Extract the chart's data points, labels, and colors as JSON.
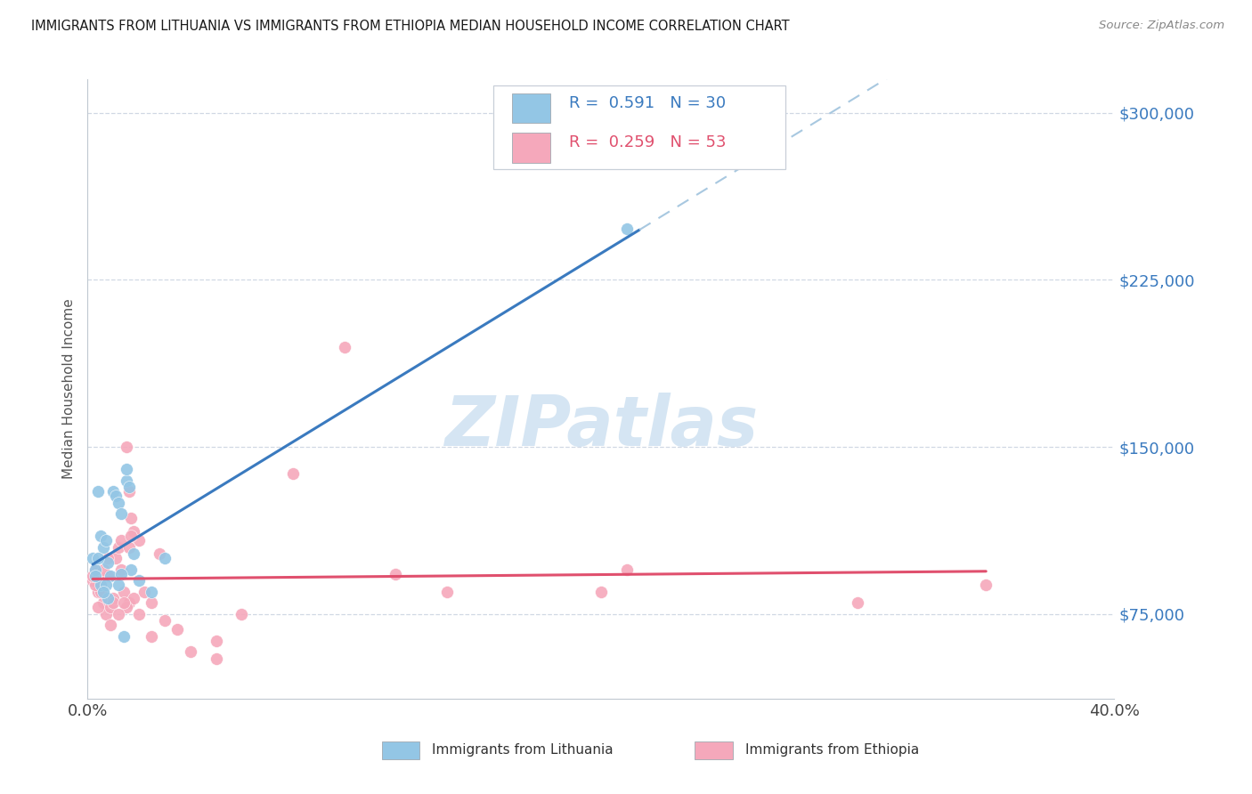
{
  "title": "IMMIGRANTS FROM LITHUANIA VS IMMIGRANTS FROM ETHIOPIA MEDIAN HOUSEHOLD INCOME CORRELATION CHART",
  "source": "Source: ZipAtlas.com",
  "ylabel": "Median Household Income",
  "xlim": [
    0.0,
    0.4
  ],
  "ylim": [
    37000,
    315000
  ],
  "yticks": [
    75000,
    150000,
    225000,
    300000
  ],
  "xticks": [
    0.0,
    0.05,
    0.1,
    0.15,
    0.2,
    0.25,
    0.3,
    0.35,
    0.4
  ],
  "label1": "Immigrants from Lithuania",
  "label2": "Immigrants from Ethiopia",
  "color1": "#93c6e5",
  "color2": "#f5a8bb",
  "line1_color": "#3a7abf",
  "line2_color": "#e0506e",
  "dashed_color": "#a8c8e0",
  "background": "#ffffff",
  "grid_color": "#d0d8e4",
  "watermark": "ZIPatlas",
  "watermark_color": "#c8ddef",
  "title_color": "#1a1a1a",
  "ylabel_color": "#555555",
  "yticklabel_color": "#3a7abf",
  "R1": "0.591",
  "N1": "30",
  "R2": "0.259",
  "N2": "53",
  "lithuania_x": [
    0.002,
    0.003,
    0.004,
    0.005,
    0.006,
    0.007,
    0.008,
    0.009,
    0.01,
    0.011,
    0.012,
    0.013,
    0.014,
    0.015,
    0.016,
    0.017,
    0.018,
    0.02,
    0.025,
    0.03,
    0.005,
    0.013,
    0.015,
    0.012,
    0.007,
    0.003,
    0.21,
    0.004,
    0.008,
    0.006
  ],
  "lithuania_y": [
    100000,
    95000,
    130000,
    110000,
    105000,
    108000,
    98000,
    92000,
    130000,
    128000,
    125000,
    120000,
    65000,
    135000,
    132000,
    95000,
    102000,
    90000,
    85000,
    100000,
    88000,
    93000,
    140000,
    88000,
    88000,
    92000,
    248000,
    100000,
    82000,
    85000
  ],
  "ethiopia_x": [
    0.002,
    0.003,
    0.004,
    0.005,
    0.006,
    0.007,
    0.008,
    0.009,
    0.01,
    0.011,
    0.012,
    0.013,
    0.014,
    0.015,
    0.016,
    0.017,
    0.018,
    0.02,
    0.025,
    0.03,
    0.035,
    0.04,
    0.05,
    0.06,
    0.08,
    0.1,
    0.12,
    0.14,
    0.016,
    0.02,
    0.025,
    0.028,
    0.022,
    0.018,
    0.015,
    0.012,
    0.01,
    0.008,
    0.006,
    0.005,
    0.004,
    0.003,
    0.002,
    0.014,
    0.016,
    0.009,
    0.013,
    0.017,
    0.21,
    0.35,
    0.2,
    0.3,
    0.05
  ],
  "ethiopia_y": [
    90000,
    95000,
    85000,
    88000,
    80000,
    75000,
    92000,
    78000,
    82000,
    100000,
    105000,
    95000,
    85000,
    150000,
    130000,
    118000,
    112000,
    108000,
    65000,
    72000,
    68000,
    58000,
    63000,
    75000,
    138000,
    195000,
    93000,
    85000,
    80000,
    75000,
    80000,
    102000,
    85000,
    82000,
    78000,
    75000,
    80000,
    100000,
    95000,
    85000,
    78000,
    88000,
    92000,
    80000,
    105000,
    70000,
    108000,
    110000,
    95000,
    88000,
    85000,
    80000,
    55000
  ]
}
